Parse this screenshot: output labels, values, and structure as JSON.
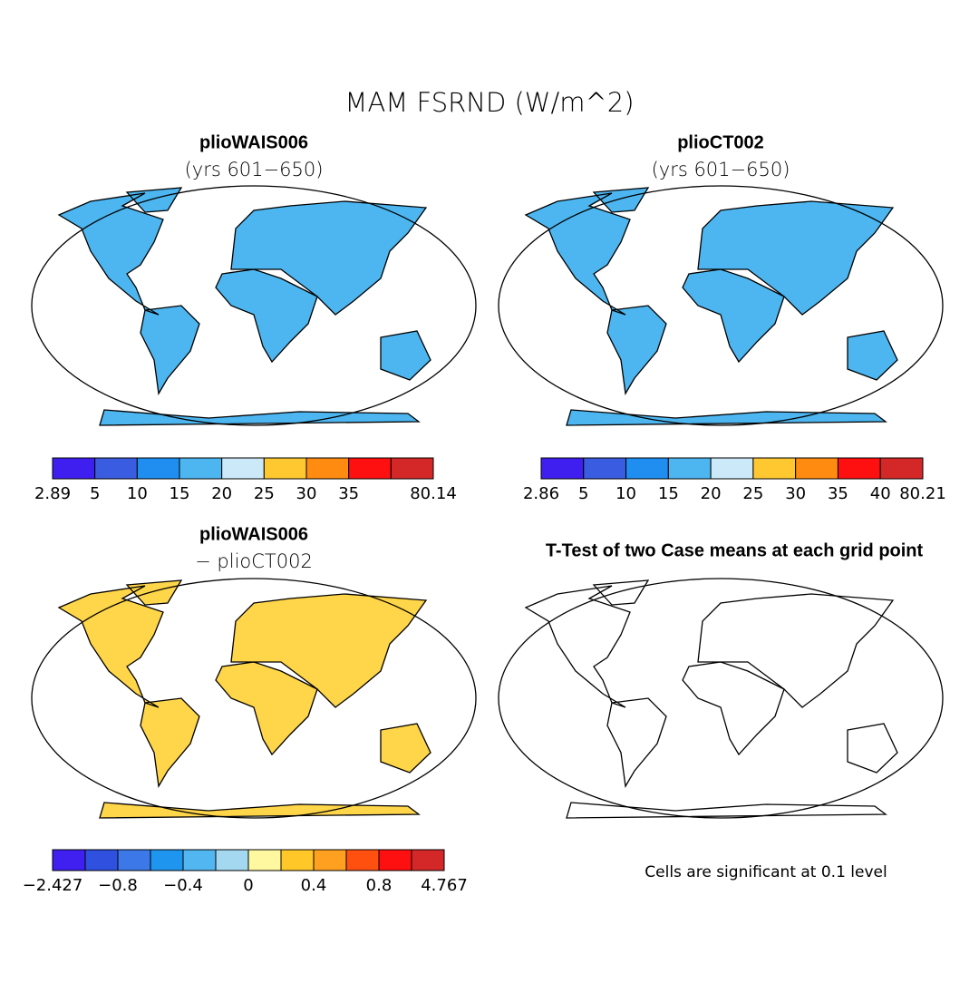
{
  "title": "MAM FSRND (W/m^2)",
  "panels": [
    {
      "title": "plioWAIS006",
      "subtitle": "(yrs 601−650)",
      "colorbar": {
        "colors": [
          "#3f1ff0",
          "#3a5ce0",
          "#1f8ef0",
          "#4db6f0",
          "#cbe9f8",
          "#ffc830",
          "#ff8c10",
          "#ff1010",
          "#d42828"
        ],
        "boundaries": [
          2.89,
          5,
          10,
          15,
          20,
          25,
          30,
          35,
          null,
          80.14
        ]
      }
    },
    {
      "title": "plioCT002",
      "subtitle": "(yrs 601−650)",
      "colorbar": {
        "colors": [
          "#3f1ff0",
          "#3a5ce0",
          "#1f8ef0",
          "#4db6f0",
          "#cbe9f8",
          "#ffc830",
          "#ff8c10",
          "#ff1010",
          "#d42828"
        ],
        "boundaries": [
          2.86,
          5,
          10,
          15,
          20,
          25,
          30,
          35,
          40,
          80.21
        ]
      }
    },
    {
      "title": "plioWAIS006",
      "subtitle": "− plioCT002",
      "colorbar": {
        "colors": [
          "#4020f0",
          "#3050e0",
          "#3c78e8",
          "#1e96f0",
          "#52b6f0",
          "#a4d8f0",
          "#fff8a0",
          "#ffc828",
          "#ffa020",
          "#ff5010",
          "#ff1010",
          "#d42828"
        ],
        "boundaries": [
          {
            "value": -2.427,
            "label": "−2.427"
          },
          null,
          {
            "value": -0.8,
            "label": "−0.8"
          },
          null,
          {
            "value": -0.4,
            "label": "−0.4"
          },
          null,
          0,
          null,
          0.4,
          null,
          0.8,
          null,
          4.767
        ]
      }
    },
    {
      "title": "T-Test of two Case means at each grid point",
      "note": "Cells are significant at 0.1 level"
    }
  ]
}
